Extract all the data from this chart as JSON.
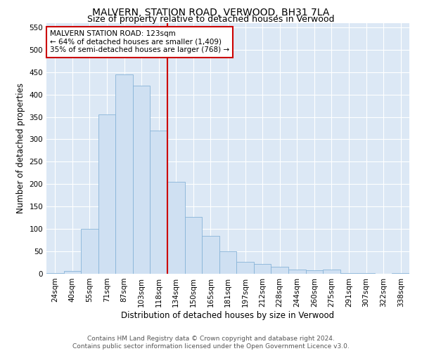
{
  "title": "MALVERN, STATION ROAD, VERWOOD, BH31 7LA",
  "subtitle": "Size of property relative to detached houses in Verwood",
  "xlabel": "Distribution of detached houses by size in Verwood",
  "ylabel": "Number of detached properties",
  "categories": [
    "24sqm",
    "40sqm",
    "55sqm",
    "71sqm",
    "87sqm",
    "103sqm",
    "118sqm",
    "134sqm",
    "150sqm",
    "165sqm",
    "181sqm",
    "197sqm",
    "212sqm",
    "228sqm",
    "244sqm",
    "260sqm",
    "275sqm",
    "291sqm",
    "307sqm",
    "322sqm",
    "338sqm"
  ],
  "values": [
    2,
    7,
    100,
    355,
    445,
    420,
    320,
    205,
    127,
    85,
    50,
    27,
    22,
    15,
    10,
    8,
    10,
    2,
    2,
    0,
    2
  ],
  "bar_color": "#cfe0f2",
  "bar_edge_color": "#88b4d8",
  "vline_color": "#cc0000",
  "annotation_text": "MALVERN STATION ROAD: 123sqm\n← 64% of detached houses are smaller (1,409)\n35% of semi-detached houses are larger (768) →",
  "annotation_box_color": "#ffffff",
  "annotation_box_edge": "#cc0000",
  "ylim": [
    0,
    560
  ],
  "yticks": [
    0,
    50,
    100,
    150,
    200,
    250,
    300,
    350,
    400,
    450,
    500,
    550
  ],
  "background_color": "#dce8f5",
  "grid_color": "#ffffff",
  "footer_line1": "Contains HM Land Registry data © Crown copyright and database right 2024.",
  "footer_line2": "Contains public sector information licensed under the Open Government Licence v3.0.",
  "title_fontsize": 10,
  "subtitle_fontsize": 9,
  "xlabel_fontsize": 8.5,
  "ylabel_fontsize": 8.5,
  "tick_fontsize": 7.5,
  "annotation_fontsize": 7.5,
  "footer_fontsize": 6.5
}
